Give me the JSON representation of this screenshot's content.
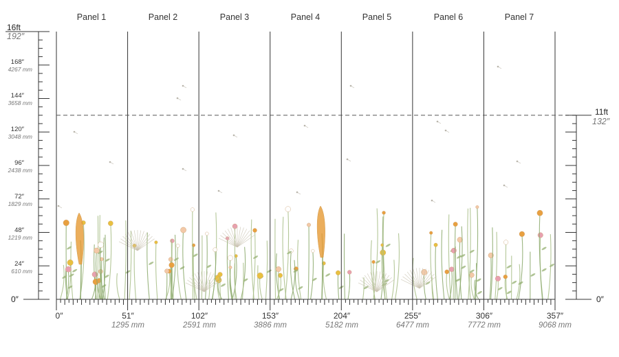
{
  "panels": [
    {
      "label": "Panel 1"
    },
    {
      "label": "Panel 2"
    },
    {
      "label": "Panel 3"
    },
    {
      "label": "Panel 4"
    },
    {
      "label": "Panel 5"
    },
    {
      "label": "Panel 6"
    },
    {
      "label": "Panel 7"
    }
  ],
  "left_ruler": {
    "top_ft": "16ft",
    "top_in": "192″",
    "zero": "0″",
    "ticks": [
      {
        "in": "168″",
        "mm": "4267 mm",
        "value": 168
      },
      {
        "in": "144″",
        "mm": "3658 mm",
        "value": 144
      },
      {
        "in": "120″",
        "mm": "3048 mm",
        "value": 120
      },
      {
        "in": "96″",
        "mm": "2438 mm",
        "value": 96
      },
      {
        "in": "72″",
        "mm": "1829 mm",
        "value": 72
      },
      {
        "in": "48″",
        "mm": "1219 mm",
        "value": 48
      },
      {
        "in": "24″",
        "mm": "610 mm",
        "value": 24
      }
    ]
  },
  "right_ruler": {
    "ft": "11ft",
    "in": "132″",
    "zero": "0″",
    "value": 132
  },
  "bottom_ruler": {
    "start": "0″",
    "marks": [
      {
        "in": "51″",
        "mm": "1295 mm",
        "value": 51
      },
      {
        "in": "102″",
        "mm": "2591 mm",
        "value": 102
      },
      {
        "in": "153″",
        "mm": "3886 mm",
        "value": 153
      },
      {
        "in": "204″",
        "mm": "5182 mm",
        "value": 204
      },
      {
        "in": "255″",
        "mm": "6477 mm",
        "value": 255
      },
      {
        "in": "306″",
        "mm": "7772 mm",
        "value": 306
      },
      {
        "in": "357″",
        "mm": "9068 mm",
        "value": 357
      }
    ]
  },
  "colors": {
    "line": "#333333",
    "dash": "#555555",
    "stem": "#8aa86a",
    "accent_orange": "#e8a040",
    "accent_pink": "#e8a0b0",
    "accent_yellow": "#e8c040"
  }
}
